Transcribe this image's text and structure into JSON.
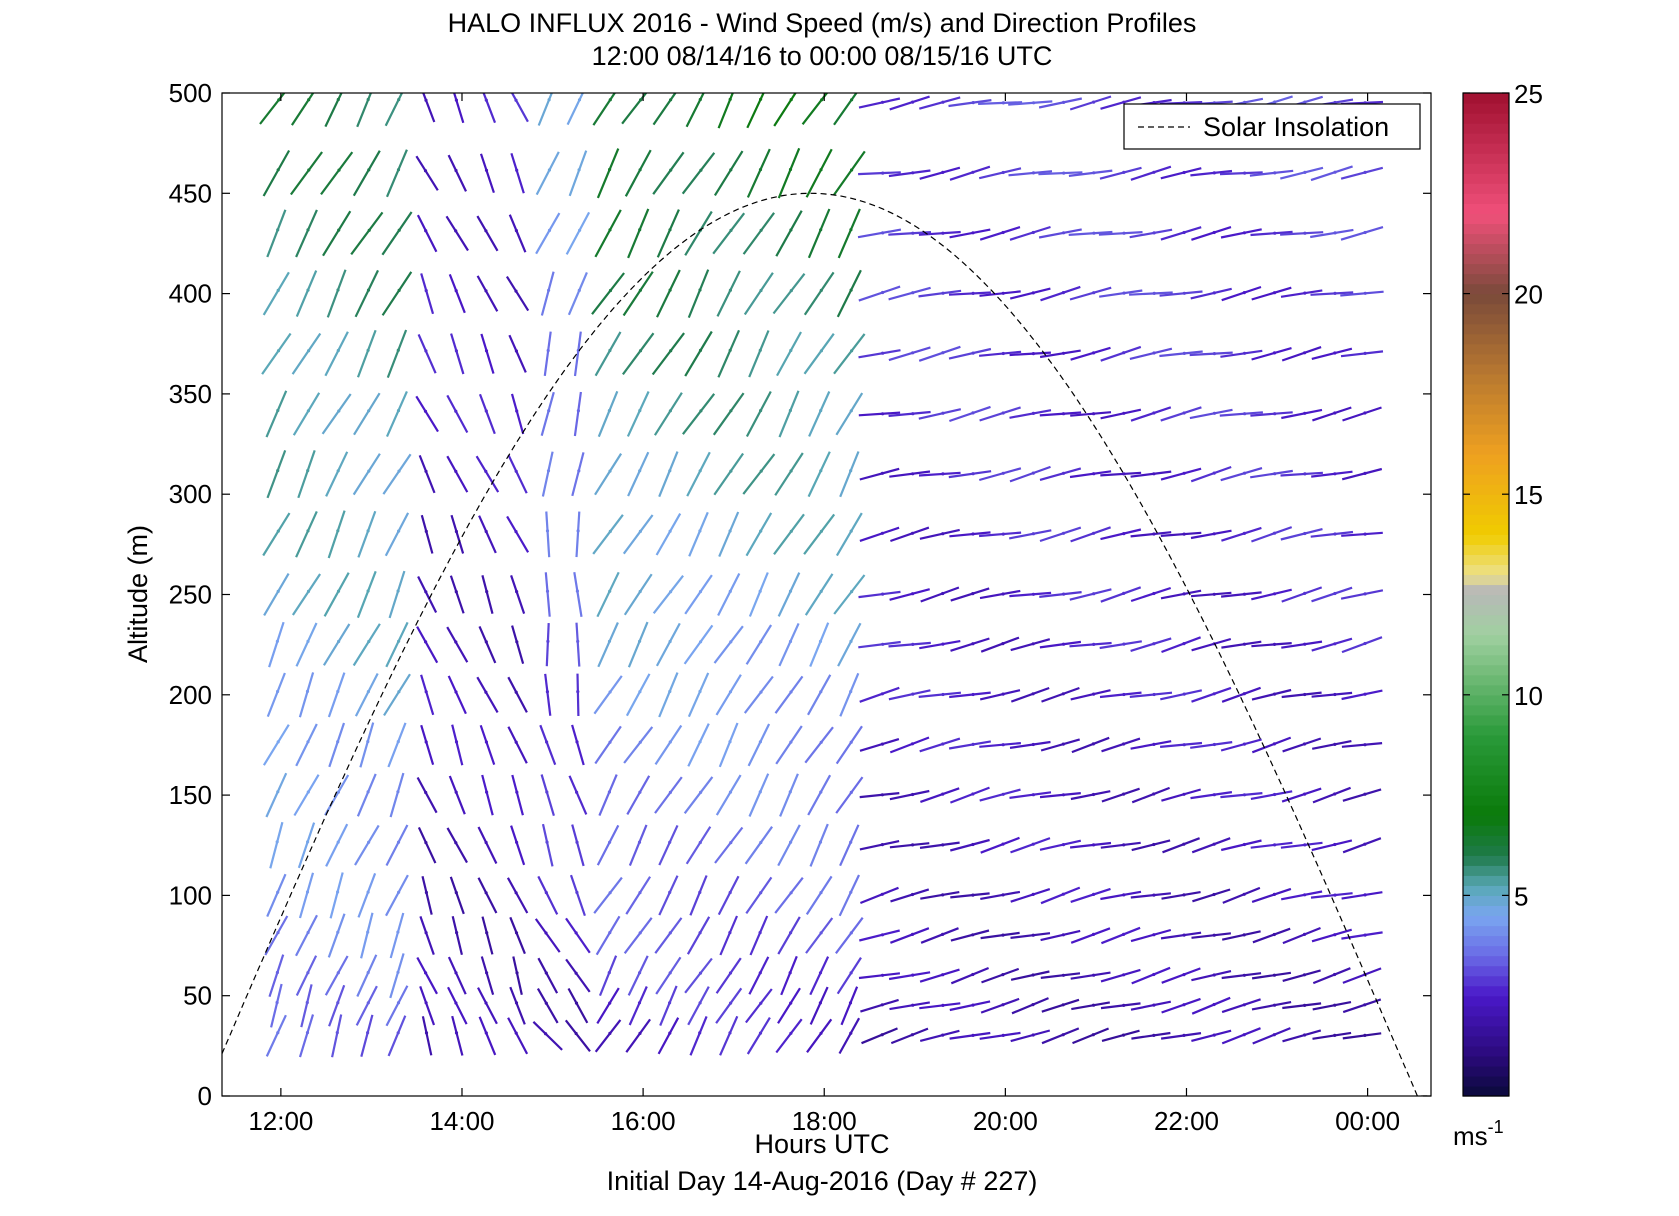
{
  "chart_data": {
    "type": "wind-barb",
    "title": "HALO INFLUX 2016 - Wind Speed (m/s) and Direction Profiles",
    "subtitle": "12:00 08/14/16 to 00:00 08/15/16  UTC",
    "xlabel": "Hours UTC",
    "ylabel": "Altitude (m)",
    "footer": "Initial Day 14-Aug-2016 (Day # 227)",
    "xlim": [
      11.35,
      24.7
    ],
    "ylim": [
      0,
      500
    ],
    "xticks": [
      12,
      14,
      16,
      18,
      20,
      22,
      24
    ],
    "xtick_labels": [
      "12:00",
      "14:00",
      "16:00",
      "18:00",
      "20:00",
      "22:00",
      "00:00"
    ],
    "yticks": [
      0,
      50,
      100,
      150,
      200,
      250,
      300,
      350,
      400,
      450,
      500
    ],
    "ytick_labels": [
      "0",
      "50",
      "100",
      "150",
      "200",
      "250",
      "300",
      "350",
      "400",
      "450",
      "500"
    ],
    "legend": {
      "entries": [
        "Solar Insolation"
      ],
      "placement": "top-right"
    },
    "colorbar": {
      "ticks": [
        5,
        10,
        15,
        20,
        25
      ],
      "tick_labels": [
        "5",
        "10",
        "15",
        "20",
        "25"
      ],
      "range": [
        0,
        25
      ],
      "unit_label": "ms",
      "unit_exponent": "-1"
    },
    "solar_insolation": {
      "peak_time": 17.85,
      "peak_altitude": 450,
      "half_width_hours": 6.7
    },
    "grid": false,
    "altitudes": [
      30,
      45,
      60,
      80,
      100,
      125,
      150,
      175,
      200,
      225,
      250,
      280,
      310,
      340,
      370,
      400,
      430,
      460,
      495
    ],
    "regimes": [
      {
        "from": 11.9,
        "to": 13.6,
        "angle_low": 70,
        "angle_high": 60,
        "speed_low": 3.5,
        "speed_high": 6
      },
      {
        "from": 13.6,
        "to": 14.7,
        "angle_low": 110,
        "angle_high": 115,
        "speed_low": 2,
        "speed_high": 2.5
      },
      {
        "from": 14.7,
        "to": 15.6,
        "angle_low": 130,
        "angle_high": 60,
        "speed_low": 2,
        "speed_high": 4.5
      },
      {
        "from": 15.6,
        "to": 18.5,
        "angle_low": 60,
        "angle_high": 60,
        "speed_low": 2.5,
        "speed_high": 6.5
      },
      {
        "from": 18.5,
        "to": 24.1,
        "angle_low": 15,
        "angle_high": 10,
        "speed_low": 2,
        "speed_high": 3
      }
    ]
  },
  "colors": {
    "solar_line": "#000000",
    "axes": "#000000"
  }
}
